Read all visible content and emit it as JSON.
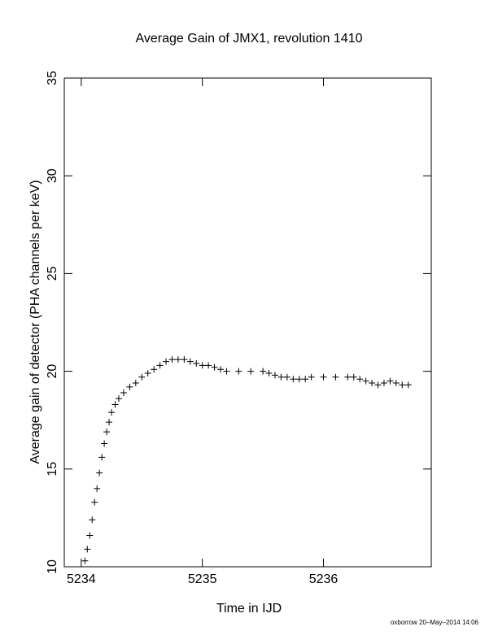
{
  "chart_data": {
    "type": "scatter",
    "title": "Average Gain of JMX1, revolution 1410",
    "x_label": "Time in IJD",
    "y_label": "Average gain of detector (PHA channels per keV)",
    "annotation": "oxborrow 20–May–2014 14:06",
    "xlim": [
      5233.86,
      5236.89
    ],
    "xticks": [
      5234,
      5235,
      5236
    ],
    "ylim": [
      10,
      35
    ],
    "yticks": [
      10,
      15,
      20,
      25,
      30,
      35
    ],
    "marker": "+",
    "color": "#000000",
    "x": [
      5234.03,
      5234.05,
      5234.07,
      5234.09,
      5234.11,
      5234.13,
      5234.15,
      5234.17,
      5234.19,
      5234.21,
      5234.23,
      5234.25,
      5234.28,
      5234.31,
      5234.35,
      5234.4,
      5234.45,
      5234.5,
      5234.55,
      5234.6,
      5234.65,
      5234.7,
      5234.75,
      5234.8,
      5234.85,
      5234.9,
      5234.95,
      5235.0,
      5235.05,
      5235.1,
      5235.15,
      5235.2,
      5235.3,
      5235.4,
      5235.5,
      5235.55,
      5235.6,
      5235.65,
      5235.7,
      5235.75,
      5235.8,
      5235.85,
      5235.9,
      5236.0,
      5236.1,
      5236.2,
      5236.25,
      5236.3,
      5236.35,
      5236.4,
      5236.45,
      5236.5,
      5236.55,
      5236.6,
      5236.65,
      5236.7
    ],
    "values": [
      10.3,
      10.9,
      11.6,
      12.4,
      13.3,
      14.0,
      14.8,
      15.6,
      16.3,
      16.9,
      17.4,
      17.9,
      18.3,
      18.6,
      18.9,
      19.2,
      19.4,
      19.7,
      19.9,
      20.1,
      20.3,
      20.5,
      20.6,
      20.6,
      20.6,
      20.5,
      20.4,
      20.3,
      20.3,
      20.2,
      20.1,
      20.0,
      20.0,
      20.0,
      20.0,
      19.9,
      19.8,
      19.7,
      19.7,
      19.6,
      19.6,
      19.6,
      19.7,
      19.7,
      19.7,
      19.7,
      19.7,
      19.6,
      19.5,
      19.4,
      19.3,
      19.4,
      19.5,
      19.4,
      19.3,
      19.3
    ]
  }
}
